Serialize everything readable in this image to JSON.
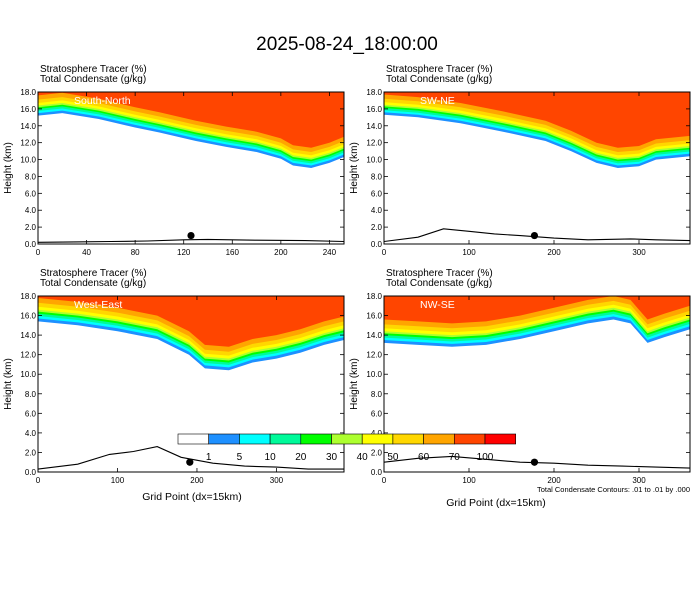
{
  "figure": {
    "title": "2025-08-24_18:00:00",
    "contour_note": "Total Condensate Contours: .01 to .01 by .000",
    "xlabel": "Grid Point (dx=15km)"
  },
  "colorbar": {
    "labels": [
      "1",
      "5",
      "10",
      "20",
      "30",
      "40",
      "50",
      "60",
      "70",
      "100"
    ],
    "colors": [
      "#ffffff",
      "#1e90ff",
      "#00ffff",
      "#00fa9a",
      "#00ff00",
      "#adff2f",
      "#ffff00",
      "#ffd700",
      "#ffa500",
      "#ff4500",
      "#ff0000"
    ]
  },
  "chart_data": [
    {
      "type": "heatmap",
      "title_line1": "Stratosphere Tracer   (%)",
      "title_line2": "Total Condensate   (g/kg)",
      "inset_label": "South-North",
      "ylabel": "Height (km)",
      "xlabel": "",
      "xlim": [
        0,
        252
      ],
      "ylim": [
        0,
        18
      ],
      "xticks": [
        0,
        40,
        80,
        120,
        160,
        200,
        240
      ],
      "yticks": [
        0,
        2,
        4,
        6,
        8,
        10,
        12,
        14,
        16,
        18
      ],
      "ytick_labels": [
        "0.0",
        "2.0",
        "4.0",
        "6.0",
        "8.0",
        "10.0",
        "12.0",
        "14.0",
        "16.0",
        "18.0"
      ],
      "tropopause_km": [
        [
          0,
          15.2
        ],
        [
          20,
          15.5
        ],
        [
          50,
          14.8
        ],
        [
          80,
          13.8
        ],
        [
          100,
          13.2
        ],
        [
          130,
          12.2
        ],
        [
          155,
          11.5
        ],
        [
          180,
          10.9
        ],
        [
          200,
          10.1
        ],
        [
          210,
          9.3
        ],
        [
          225,
          9.0
        ],
        [
          240,
          9.6
        ],
        [
          252,
          10.3
        ]
      ],
      "terrain_km": [
        [
          0,
          0.2
        ],
        [
          30,
          0.25
        ],
        [
          60,
          0.3
        ],
        [
          90,
          0.35
        ],
        [
          120,
          0.5
        ],
        [
          140,
          0.55
        ],
        [
          180,
          0.45
        ],
        [
          220,
          0.4
        ],
        [
          252,
          0.3
        ]
      ],
      "location_marker": [
        126,
        1.0
      ]
    },
    {
      "type": "heatmap",
      "title_line1": "Stratosphere Tracer   (%)",
      "title_line2": "Total Condensate   (g/kg)",
      "inset_label": "SW-NE",
      "ylabel": "Height (km)",
      "xlabel": "",
      "xlim": [
        0,
        360
      ],
      "ylim": [
        0,
        18
      ],
      "xticks": [
        0,
        100,
        200,
        300
      ],
      "yticks": [
        0,
        2,
        4,
        6,
        8,
        10,
        12,
        14,
        16,
        18
      ],
      "ytick_labels": [
        "0.0",
        "2.0",
        "4.0",
        "6.0",
        "8.0",
        "10.0",
        "12.0",
        "14.0",
        "16.0",
        "18.0"
      ],
      "tropopause_km": [
        [
          0,
          15.3
        ],
        [
          40,
          15.0
        ],
        [
          90,
          14.3
        ],
        [
          140,
          13.3
        ],
        [
          190,
          12.2
        ],
        [
          220,
          11.0
        ],
        [
          250,
          9.6
        ],
        [
          275,
          9.0
        ],
        [
          300,
          9.2
        ],
        [
          320,
          10.0
        ],
        [
          360,
          10.4
        ]
      ],
      "terrain_km": [
        [
          0,
          0.3
        ],
        [
          40,
          0.8
        ],
        [
          70,
          1.8
        ],
        [
          100,
          1.5
        ],
        [
          130,
          1.2
        ],
        [
          160,
          1.0
        ],
        [
          200,
          0.7
        ],
        [
          240,
          0.5
        ],
        [
          290,
          0.6
        ],
        [
          320,
          0.5
        ],
        [
          360,
          0.4
        ]
      ],
      "location_marker": [
        177,
        1.0
      ]
    },
    {
      "type": "heatmap",
      "title_line1": "Stratosphere Tracer   (%)",
      "title_line2": "Total Condensate   (g/kg)",
      "inset_label": "West-East",
      "ylabel": "Height (km)",
      "xlabel": "",
      "xlim": [
        0,
        385
      ],
      "ylim": [
        0,
        18
      ],
      "xticks": [
        0,
        100,
        200,
        300
      ],
      "yticks": [
        0,
        2,
        4,
        6,
        8,
        10,
        12,
        14,
        16,
        18
      ],
      "ytick_labels": [
        "0.0",
        "2.0",
        "4.0",
        "6.0",
        "8.0",
        "10.0",
        "12.0",
        "14.0",
        "16.0",
        "18.0"
      ],
      "tropopause_km": [
        [
          0,
          15.4
        ],
        [
          50,
          15.0
        ],
        [
          100,
          14.4
        ],
        [
          150,
          13.6
        ],
        [
          190,
          12.0
        ],
        [
          210,
          10.6
        ],
        [
          240,
          10.4
        ],
        [
          270,
          11.2
        ],
        [
          300,
          11.6
        ],
        [
          330,
          12.2
        ],
        [
          360,
          13.0
        ],
        [
          385,
          13.5
        ]
      ],
      "terrain_km": [
        [
          0,
          0.3
        ],
        [
          50,
          0.8
        ],
        [
          90,
          1.8
        ],
        [
          120,
          2.1
        ],
        [
          150,
          2.6
        ],
        [
          180,
          1.5
        ],
        [
          220,
          0.9
        ],
        [
          260,
          0.6
        ],
        [
          300,
          0.5
        ],
        [
          340,
          0.3
        ],
        [
          385,
          0.3
        ]
      ],
      "location_marker": [
        191,
        1.0
      ]
    },
    {
      "type": "heatmap",
      "title_line1": "Stratosphere Tracer   (%)",
      "title_line2": "Total Condensate   (g/kg)",
      "inset_label": "NW-SE",
      "ylabel": "Height (km)",
      "xlabel": "",
      "xlim": [
        0,
        360
      ],
      "ylim": [
        0,
        18
      ],
      "xticks": [
        0,
        100,
        200,
        300
      ],
      "yticks": [
        0,
        2,
        4,
        6,
        8,
        10,
        12,
        14,
        16,
        18
      ],
      "ytick_labels": [
        "0.0",
        "2.0",
        "4.0",
        "6.0",
        "8.0",
        "10.0",
        "12.0",
        "14.0",
        "16.0",
        "18.0"
      ],
      "tropopause_km": [
        [
          0,
          13.2
        ],
        [
          40,
          13.0
        ],
        [
          80,
          12.8
        ],
        [
          120,
          13.0
        ],
        [
          160,
          13.6
        ],
        [
          200,
          14.4
        ],
        [
          240,
          15.2
        ],
        [
          270,
          15.6
        ],
        [
          290,
          15.2
        ],
        [
          310,
          13.2
        ],
        [
          330,
          13.8
        ],
        [
          360,
          14.6
        ]
      ],
      "terrain_km": [
        [
          0,
          1.0
        ],
        [
          40,
          1.4
        ],
        [
          80,
          1.6
        ],
        [
          120,
          1.3
        ],
        [
          160,
          1.0
        ],
        [
          200,
          0.9
        ],
        [
          240,
          0.7
        ],
        [
          280,
          0.6
        ],
        [
          320,
          0.5
        ],
        [
          360,
          0.4
        ]
      ],
      "location_marker": [
        177,
        1.0
      ]
    }
  ]
}
